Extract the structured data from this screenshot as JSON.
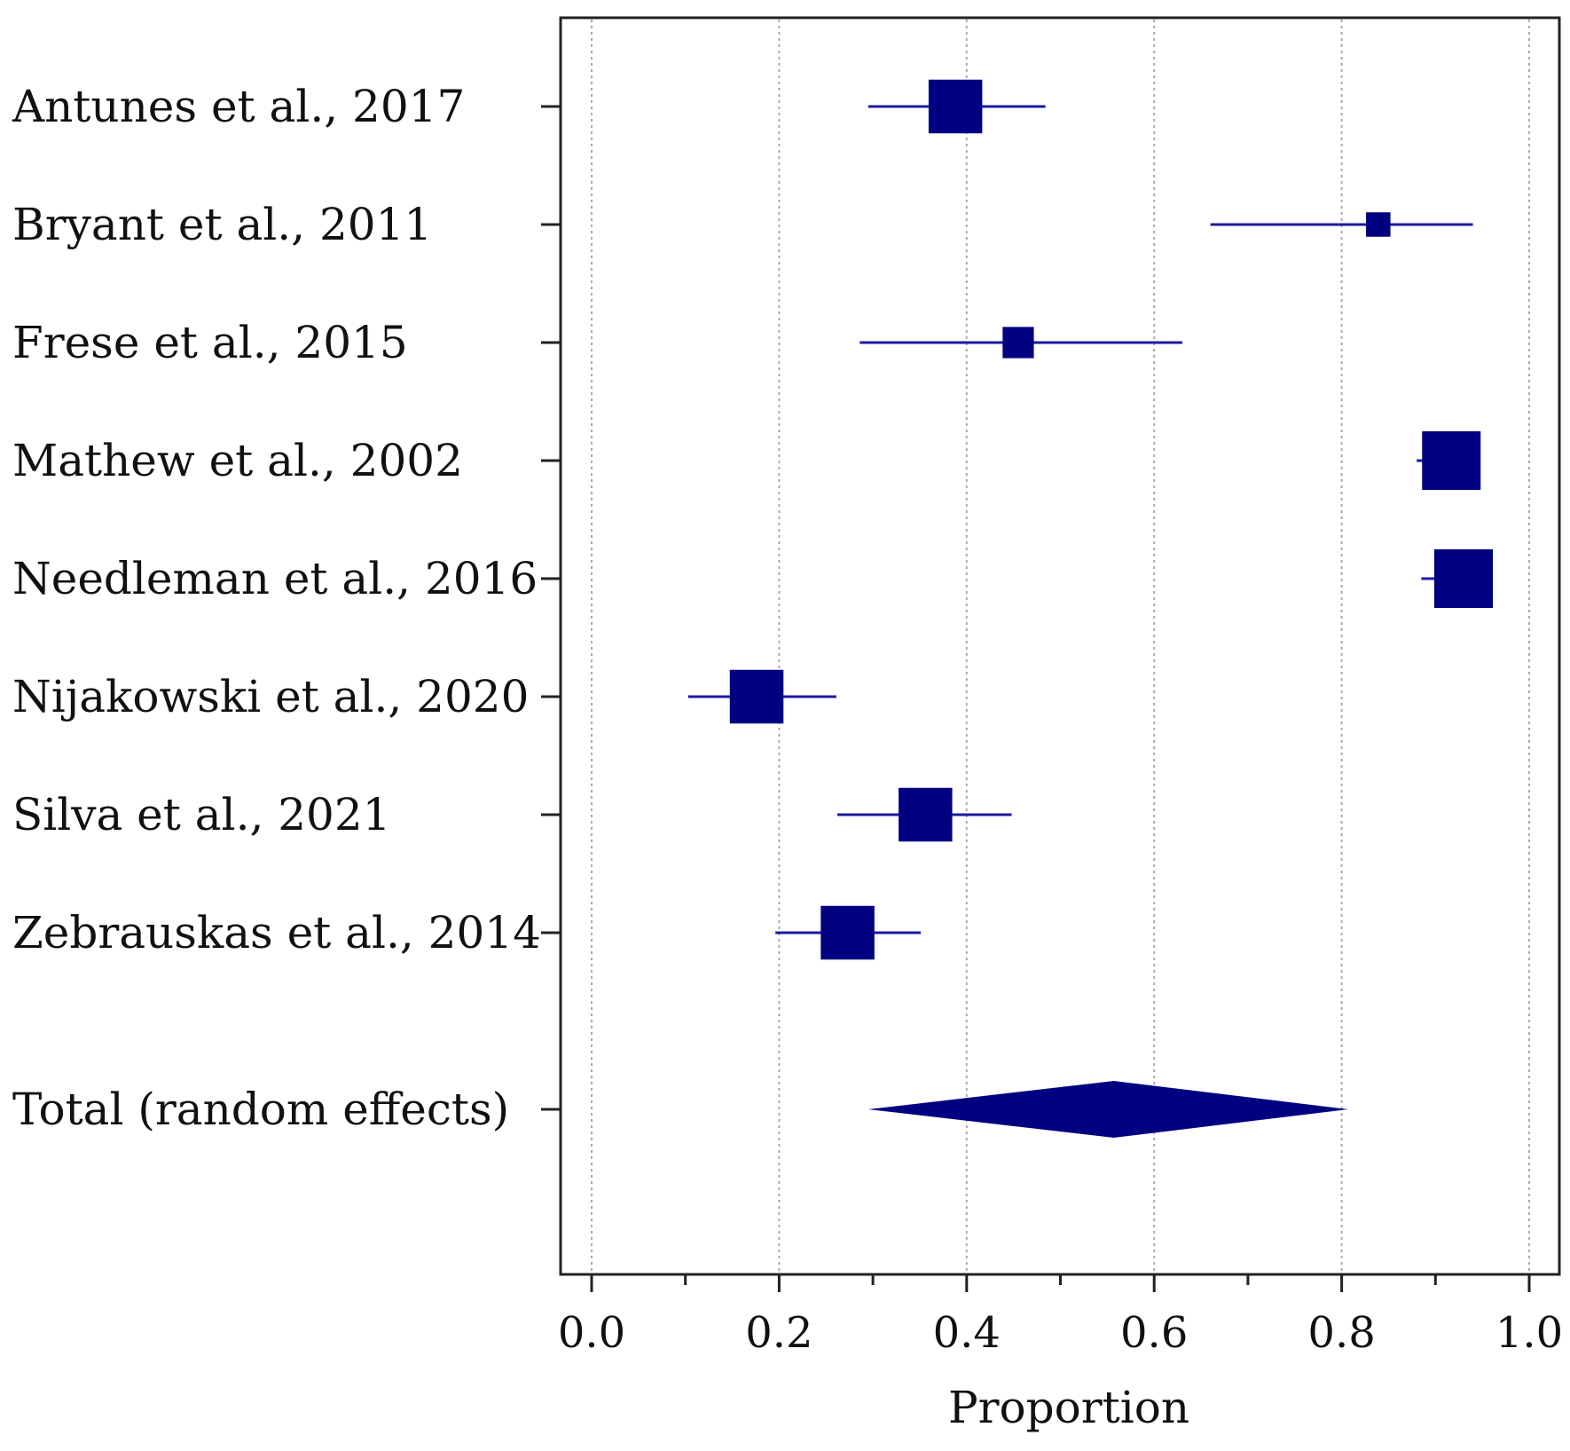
{
  "chart_data": {
    "type": "forest",
    "xlabel": "Proportion",
    "xlim": [
      -0.032,
      1.027
    ],
    "major_ticks": [
      0.0,
      0.2,
      0.4,
      0.6,
      0.8,
      1.0
    ],
    "tick_labels": [
      "0.0",
      "0.2",
      "0.4",
      "0.6",
      "0.8",
      "1.0"
    ],
    "minor_ticks": [
      0.1,
      0.3,
      0.5,
      0.7,
      0.9
    ],
    "grid": "vertical dotted at major ticks",
    "studies": [
      {
        "label": "Antunes et al., 2017",
        "estimate": 0.388,
        "ci_low": 0.295,
        "ci_high": 0.484,
        "weight": 0.55
      },
      {
        "label": "Bryant et al., 2011",
        "estimate": 0.839,
        "ci_low": 0.66,
        "ci_high": 0.94,
        "weight": 0.25
      },
      {
        "label": "Frese et al., 2015",
        "estimate": 0.455,
        "ci_low": 0.286,
        "ci_high": 0.63,
        "weight": 0.32
      },
      {
        "label": "Mathew et al., 2002",
        "estimate": 0.917,
        "ci_low": 0.88,
        "ci_high": 0.93,
        "weight": 0.6
      },
      {
        "label": "Needleman et al., 2016",
        "estimate": 0.93,
        "ci_low": 0.885,
        "ci_high": 0.955,
        "weight": 0.6
      },
      {
        "label": "Nijakowski et al., 2020",
        "estimate": 0.176,
        "ci_low": 0.103,
        "ci_high": 0.261,
        "weight": 0.55
      },
      {
        "label": "Silva et al., 2021",
        "estimate": 0.356,
        "ci_low": 0.262,
        "ci_high": 0.448,
        "weight": 0.55
      },
      {
        "label": "Zebrauskas et al., 2014",
        "estimate": 0.273,
        "ci_low": 0.196,
        "ci_high": 0.351,
        "weight": 0.55
      }
    ],
    "pooled": {
      "label": "Total (random effects)",
      "estimate": 0.557,
      "ci_low": 0.295,
      "ci_high": 0.807
    },
    "colors": {
      "marker": "#000080",
      "line": "#1a1aa0",
      "axis": "#222222",
      "grid": "#aaaaaa"
    }
  }
}
